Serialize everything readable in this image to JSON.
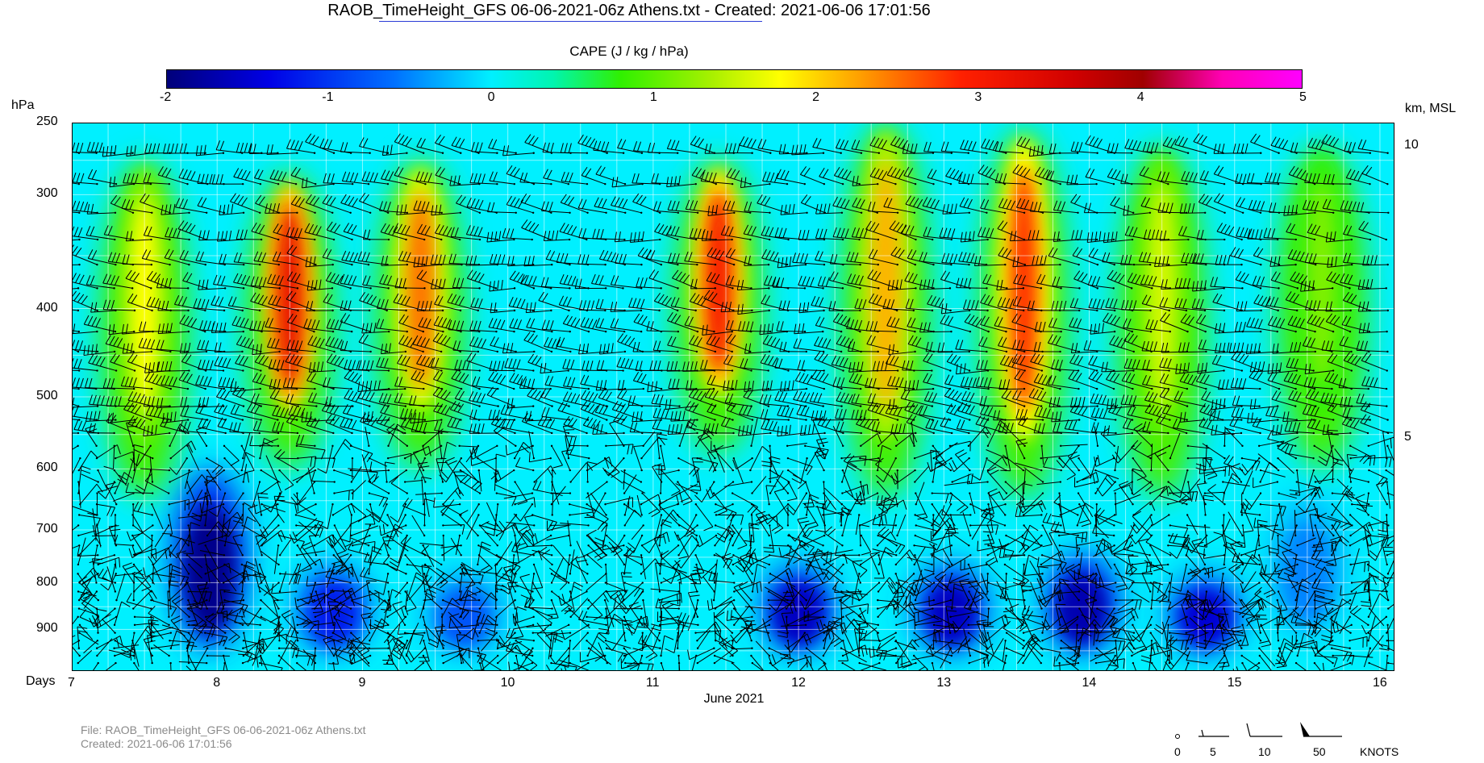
{
  "title": "RAOB_TimeHeight_GFS 06-06-2021-06z Athens.txt - Created:  2021-06-06  17:01:56",
  "colorbar": {
    "label": "CAPE (J / kg / hPa)",
    "ticks": [
      "-2",
      "-1",
      "0",
      "1",
      "2",
      "3",
      "4",
      "5"
    ],
    "min": -2,
    "max": 5
  },
  "y_axis": {
    "label": "hPa",
    "scale": "log",
    "range": [
      250,
      1000
    ],
    "ticks": [
      250,
      300,
      400,
      500,
      600,
      700,
      800,
      900
    ]
  },
  "y2_axis": {
    "label": "km, MSL",
    "ticks": [
      10,
      5
    ]
  },
  "x_axis": {
    "label": "Days",
    "range": [
      7,
      16.1
    ],
    "ticks": [
      7,
      8,
      9,
      10,
      11,
      12,
      13,
      14,
      15,
      16
    ],
    "month_label": "June 2021"
  },
  "footer": {
    "file": "File: RAOB_TimeHeight_GFS 06-06-2021-06z Athens.txt",
    "created": "Created:  2021-06-06  17:01:56"
  },
  "wind_legend": {
    "labels": [
      "0",
      "5",
      "10",
      "50"
    ],
    "units": "KNOTS"
  },
  "colors": {
    "background_field": "#00f0ff",
    "barb_color": "#000000",
    "grid_color": "#ffffff"
  },
  "chart_data": {
    "type": "heatmap",
    "title": "RAOB_TimeHeight_GFS 06-06-2021-06z Athens.txt - Created:  2021-06-06  17:01:56",
    "xlabel": "Days",
    "ylabel": "hPa",
    "value_label": "CAPE (J / kg / hPa)",
    "value_range": [
      -2,
      5
    ],
    "xlim": [
      7,
      16.1
    ],
    "ylim": [
      1000,
      250
    ],
    "convective_maxima": [
      {
        "day": 7.5,
        "p_top": 280,
        "p_bottom": 560,
        "peak": 1.8
      },
      {
        "day": 8.5,
        "p_top": 290,
        "p_bottom": 520,
        "peak": 3.2
      },
      {
        "day": 9.4,
        "p_top": 280,
        "p_bottom": 520,
        "peak": 2.5
      },
      {
        "day": 11.45,
        "p_top": 280,
        "p_bottom": 500,
        "peak": 3.0
      },
      {
        "day": 12.6,
        "p_top": 255,
        "p_bottom": 560,
        "peak": 2.2
      },
      {
        "day": 13.55,
        "p_top": 260,
        "p_bottom": 560,
        "peak": 2.8
      },
      {
        "day": 14.5,
        "p_top": 270,
        "p_bottom": 560,
        "peak": 1.6
      },
      {
        "day": 15.6,
        "p_top": 270,
        "p_bottom": 520,
        "peak": 1.2
      }
    ],
    "negative_minima": [
      {
        "day": 7.95,
        "p_top": 600,
        "p_bottom": 950,
        "trough": -1.9
      },
      {
        "day": 8.8,
        "p_top": 760,
        "p_bottom": 960,
        "trough": -1.2
      },
      {
        "day": 9.7,
        "p_top": 780,
        "p_bottom": 960,
        "trough": -0.8
      },
      {
        "day": 12.0,
        "p_top": 760,
        "p_bottom": 960,
        "trough": -1.6
      },
      {
        "day": 13.05,
        "p_top": 760,
        "p_bottom": 960,
        "trough": -1.6
      },
      {
        "day": 13.95,
        "p_top": 740,
        "p_bottom": 960,
        "trough": -1.7
      },
      {
        "day": 14.8,
        "p_top": 780,
        "p_bottom": 960,
        "trough": -1.5
      },
      {
        "day": 15.5,
        "p_top": 640,
        "p_bottom": 920,
        "trough": -0.5
      }
    ]
  }
}
